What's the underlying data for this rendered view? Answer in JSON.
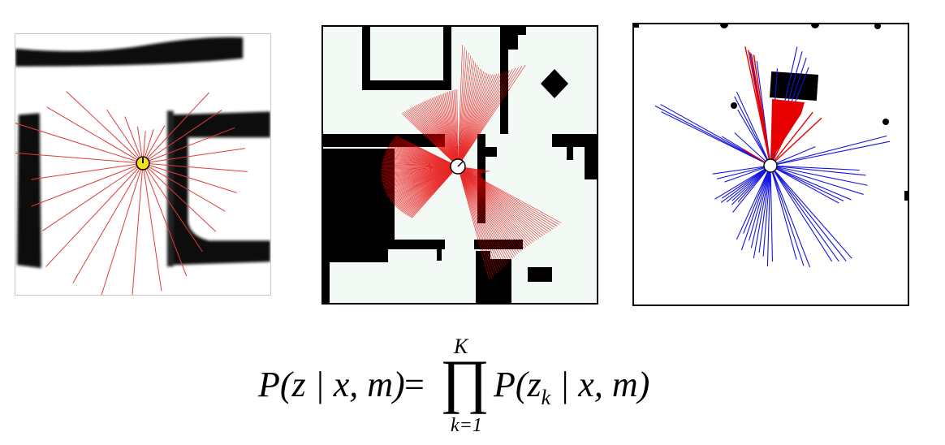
{
  "figure": {
    "panels": [
      {
        "id": "left",
        "ray_color": "#e03a3a",
        "robot_color": "#f2e21a"
      },
      {
        "id": "middle",
        "ray_color": "#e60000"
      },
      {
        "id": "right",
        "ray_color_main": "#1414e0",
        "ray_color_alt": "#e60000"
      }
    ],
    "formula": {
      "lhs": "P(z | x, m)",
      "equals": "=",
      "product_symbol": "∏",
      "upper_limit": "K",
      "lower_limit": "k=1",
      "rhs_prefix": "P(z",
      "rhs_subscript": "k",
      "rhs_suffix": " | x, m)"
    }
  }
}
